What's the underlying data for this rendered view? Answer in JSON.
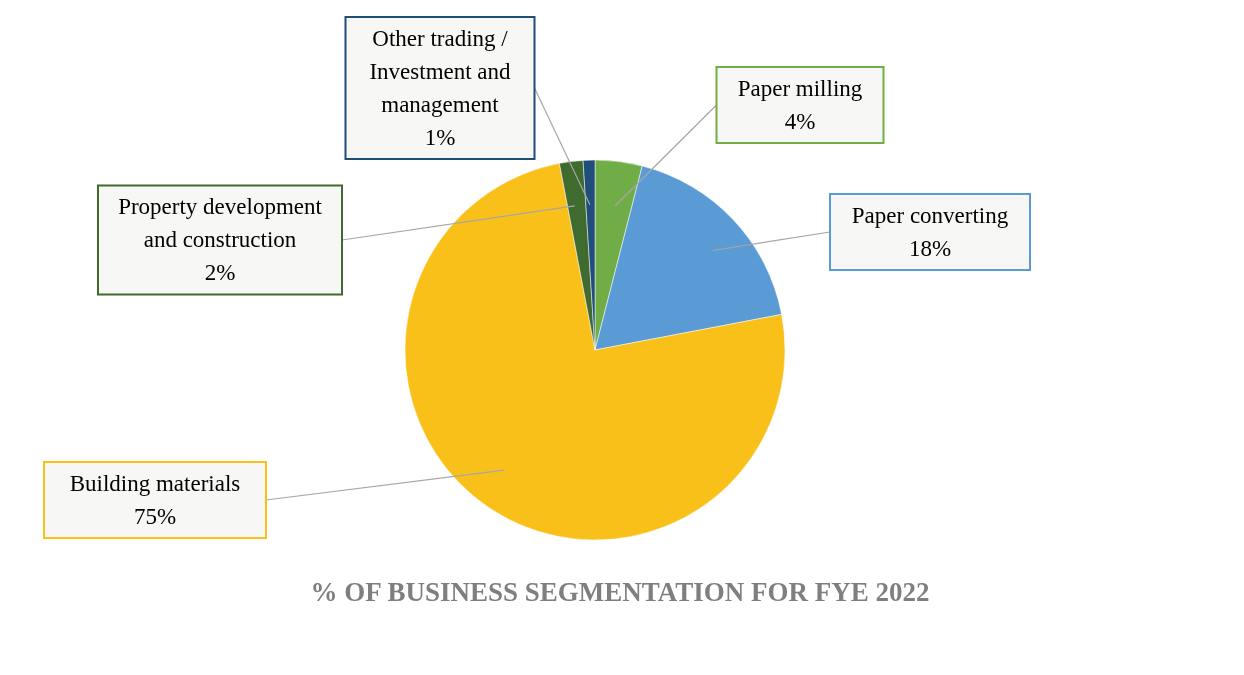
{
  "chart_data": {
    "type": "pie",
    "title": "% OF BUSINESS SEGMENTATION FOR FYE 2022",
    "categories": [
      "Paper milling",
      "Paper converting",
      "Building materials",
      "Property development and construction",
      "Other trading / Investment and management"
    ],
    "values": [
      4,
      18,
      75,
      2,
      1
    ],
    "colors": [
      "#70ad47",
      "#5b9bd5",
      "#f9c01a",
      "#3f6b2f",
      "#1f4e79"
    ],
    "value_labels": [
      "4%",
      "18%",
      "75%",
      "2%",
      "1%"
    ],
    "legend": false
  }
}
